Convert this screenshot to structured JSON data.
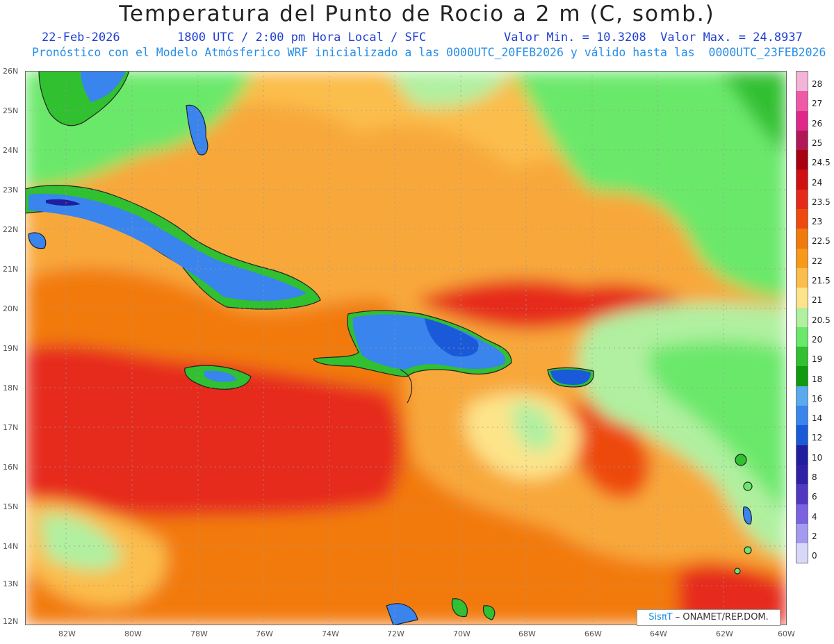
{
  "title": "Temperatura del Punto de Rocio a 2 m (C, somb.)",
  "header": {
    "date": "22-Feb-2026",
    "time": "1800 UTC / 2:00 pm Hora Local / SFC",
    "min_max": "Valor Min. = 10.3208  Valor Max. = 24.8937",
    "forecast": "Pronóstico con el Modelo Atmósferico WRF inicializado a las 0000UTC_20FEB2026 y válido hasta las  0000UTC_23FEB2026"
  },
  "axes": {
    "lat_labels": [
      "26N",
      "25N",
      "24N",
      "23N",
      "22N",
      "21N",
      "20N",
      "19N",
      "18N",
      "17N",
      "16N",
      "15N",
      "14N",
      "13N",
      "12N"
    ],
    "lon_labels": [
      "82W",
      "80W",
      "78W",
      "76W",
      "74W",
      "72W",
      "70W",
      "68W",
      "66W",
      "64W",
      "62W",
      "60W"
    ]
  },
  "colorbar": {
    "labels": [
      "28",
      "27",
      "26",
      "25",
      "24.5",
      "24",
      "23.5",
      "23",
      "22.5",
      "22",
      "21.5",
      "21",
      "20.5",
      "20",
      "19",
      "18",
      "16",
      "14",
      "12",
      "10",
      "8",
      "6",
      "4",
      "2",
      "0"
    ],
    "colors": [
      "#f4b4d8",
      "#ee5aa8",
      "#e0288a",
      "#b01858",
      "#a80010",
      "#d01010",
      "#e62a1a",
      "#ee4a10",
      "#f27a0c",
      "#f79a1c",
      "#fbbd4c",
      "#fde48a",
      "#b0f0a0",
      "#6ae86a",
      "#30c030",
      "#109a10",
      "#5aaaf0",
      "#3a84ee",
      "#1a5ad8",
      "#1e1e9e",
      "#3020a8",
      "#5038c0",
      "#7a62e0",
      "#a49af0",
      "#d8d8f8"
    ]
  },
  "credit": {
    "brand": "SisπT",
    "org": " – ONAMET/REP.DOM."
  }
}
